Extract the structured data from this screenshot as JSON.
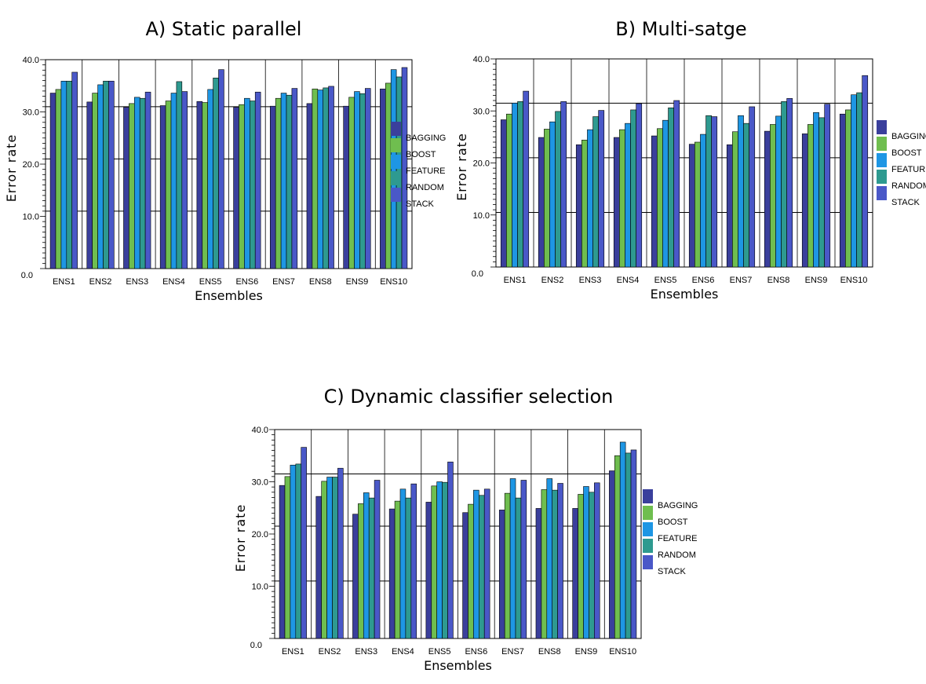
{
  "chart_data": [
    {
      "type": "bar",
      "title": "A) Static parallel",
      "xlabel": "Ensembles",
      "ylabel": "Error rate",
      "ylim": [
        0,
        40
      ],
      "yticks": [
        "0.0",
        "10.0",
        "20.0",
        "30.0",
        "40.0"
      ],
      "grid": "horizontal at 11, 21, 31",
      "legend_position": "right",
      "categories": [
        "ENS1",
        "ENS2",
        "ENS3",
        "ENS4",
        "ENS5",
        "ENS6",
        "ENS7",
        "ENS8",
        "ENS9",
        "ENS10"
      ],
      "series": [
        {
          "name": "BAGGING",
          "color": "#3a3f9c",
          "values": [
            33.6,
            31.9,
            30.9,
            31.2,
            32.0,
            30.9,
            31.1,
            31.6,
            31.1,
            34.4
          ]
        },
        {
          "name": "BOOST",
          "color": "#6fbe4f",
          "values": [
            34.3,
            33.6,
            31.6,
            32.1,
            31.8,
            31.4,
            32.6,
            34.4,
            32.8,
            35.5
          ]
        },
        {
          "name": "FEATURE",
          "color": "#1e96e4",
          "values": [
            35.9,
            35.2,
            32.8,
            33.6,
            34.3,
            32.6,
            33.6,
            34.2,
            33.9,
            38.1
          ]
        },
        {
          "name": "RANDOM",
          "color": "#2e9a90",
          "values": [
            35.9,
            35.9,
            32.6,
            35.8,
            36.5,
            32.1,
            33.2,
            34.6,
            33.5,
            36.7
          ]
        },
        {
          "name": "STACK",
          "color": "#4a58c8",
          "values": [
            37.6,
            35.9,
            33.8,
            33.9,
            38.1,
            33.8,
            34.5,
            34.9,
            34.5,
            38.5
          ]
        }
      ]
    },
    {
      "type": "bar",
      "title": "B)  Multi-satge",
      "xlabel": "Ensembles",
      "ylabel": "Error rate",
      "ylim": [
        0,
        40
      ],
      "yticks": [
        "0.0",
        "10.0",
        "20.0",
        "30.0",
        "40.0"
      ],
      "grid": "horizontal at 10.5, 21, 31.5",
      "legend_position": "right",
      "categories": [
        "ENS1",
        "ENS2",
        "ENS3",
        "ENS4",
        "ENS5",
        "ENS6",
        "ENS7",
        "ENS8",
        "ENS9",
        "ENS10"
      ],
      "series": [
        {
          "name": "BAGGING",
          "color": "#3a3f9c",
          "values": [
            28.3,
            24.9,
            23.5,
            24.9,
            25.2,
            23.6,
            23.5,
            26.1,
            25.6,
            29.4
          ]
        },
        {
          "name": "BOOST",
          "color": "#6fbe4f",
          "values": [
            29.4,
            26.5,
            24.4,
            26.4,
            26.6,
            24.0,
            26.0,
            27.4,
            27.4,
            30.2
          ]
        },
        {
          "name": "FEATURE",
          "color": "#1e96e4",
          "values": [
            31.5,
            27.9,
            26.4,
            27.6,
            28.2,
            25.5,
            29.1,
            29.0,
            29.7,
            33.1
          ]
        },
        {
          "name": "RANDOM",
          "color": "#2e9a90",
          "values": [
            31.8,
            29.9,
            28.9,
            30.2,
            30.6,
            29.1,
            27.6,
            31.8,
            28.7,
            33.5
          ]
        },
        {
          "name": "STACK",
          "color": "#4a58c8",
          "values": [
            33.8,
            31.8,
            30.1,
            31.4,
            32.0,
            28.9,
            30.8,
            32.4,
            31.3,
            36.8
          ]
        }
      ]
    },
    {
      "type": "bar",
      "title": "C) Dynamic classifier selection",
      "xlabel": "Ensembles",
      "ylabel": "Error rate",
      "ylim": [
        0,
        40
      ],
      "yticks": [
        "0.0",
        "10.0",
        "20.0",
        "30.0",
        "40.0"
      ],
      "grid": "horizontal at 11, 21.5, 31.5",
      "legend_position": "right",
      "categories": [
        "ENS1",
        "ENS2",
        "ENS3",
        "ENS4",
        "ENS5",
        "ENS6",
        "ENS7",
        "ENS8",
        "ENS9",
        "ENS10"
      ],
      "series": [
        {
          "name": "BAGGING",
          "color": "#3a3f9c",
          "values": [
            29.3,
            27.2,
            23.8,
            24.8,
            26.1,
            24.1,
            24.6,
            24.9,
            24.9,
            32.1
          ]
        },
        {
          "name": "BOOST",
          "color": "#6fbe4f",
          "values": [
            31.0,
            30.1,
            25.8,
            26.3,
            29.2,
            25.7,
            27.8,
            28.5,
            27.6,
            35.0
          ]
        },
        {
          "name": "FEATURE",
          "color": "#1e96e4",
          "values": [
            33.2,
            30.9,
            27.9,
            28.6,
            30.0,
            28.4,
            30.6,
            30.6,
            29.1,
            37.6
          ]
        },
        {
          "name": "RANDOM",
          "color": "#2e9a90",
          "values": [
            33.4,
            30.9,
            26.9,
            26.9,
            29.9,
            27.4,
            26.9,
            28.4,
            28.0,
            35.5
          ]
        },
        {
          "name": "STACK",
          "color": "#4a58c8",
          "values": [
            36.6,
            32.6,
            30.3,
            29.6,
            33.8,
            28.6,
            30.3,
            29.7,
            29.8,
            36.1
          ]
        }
      ]
    }
  ]
}
